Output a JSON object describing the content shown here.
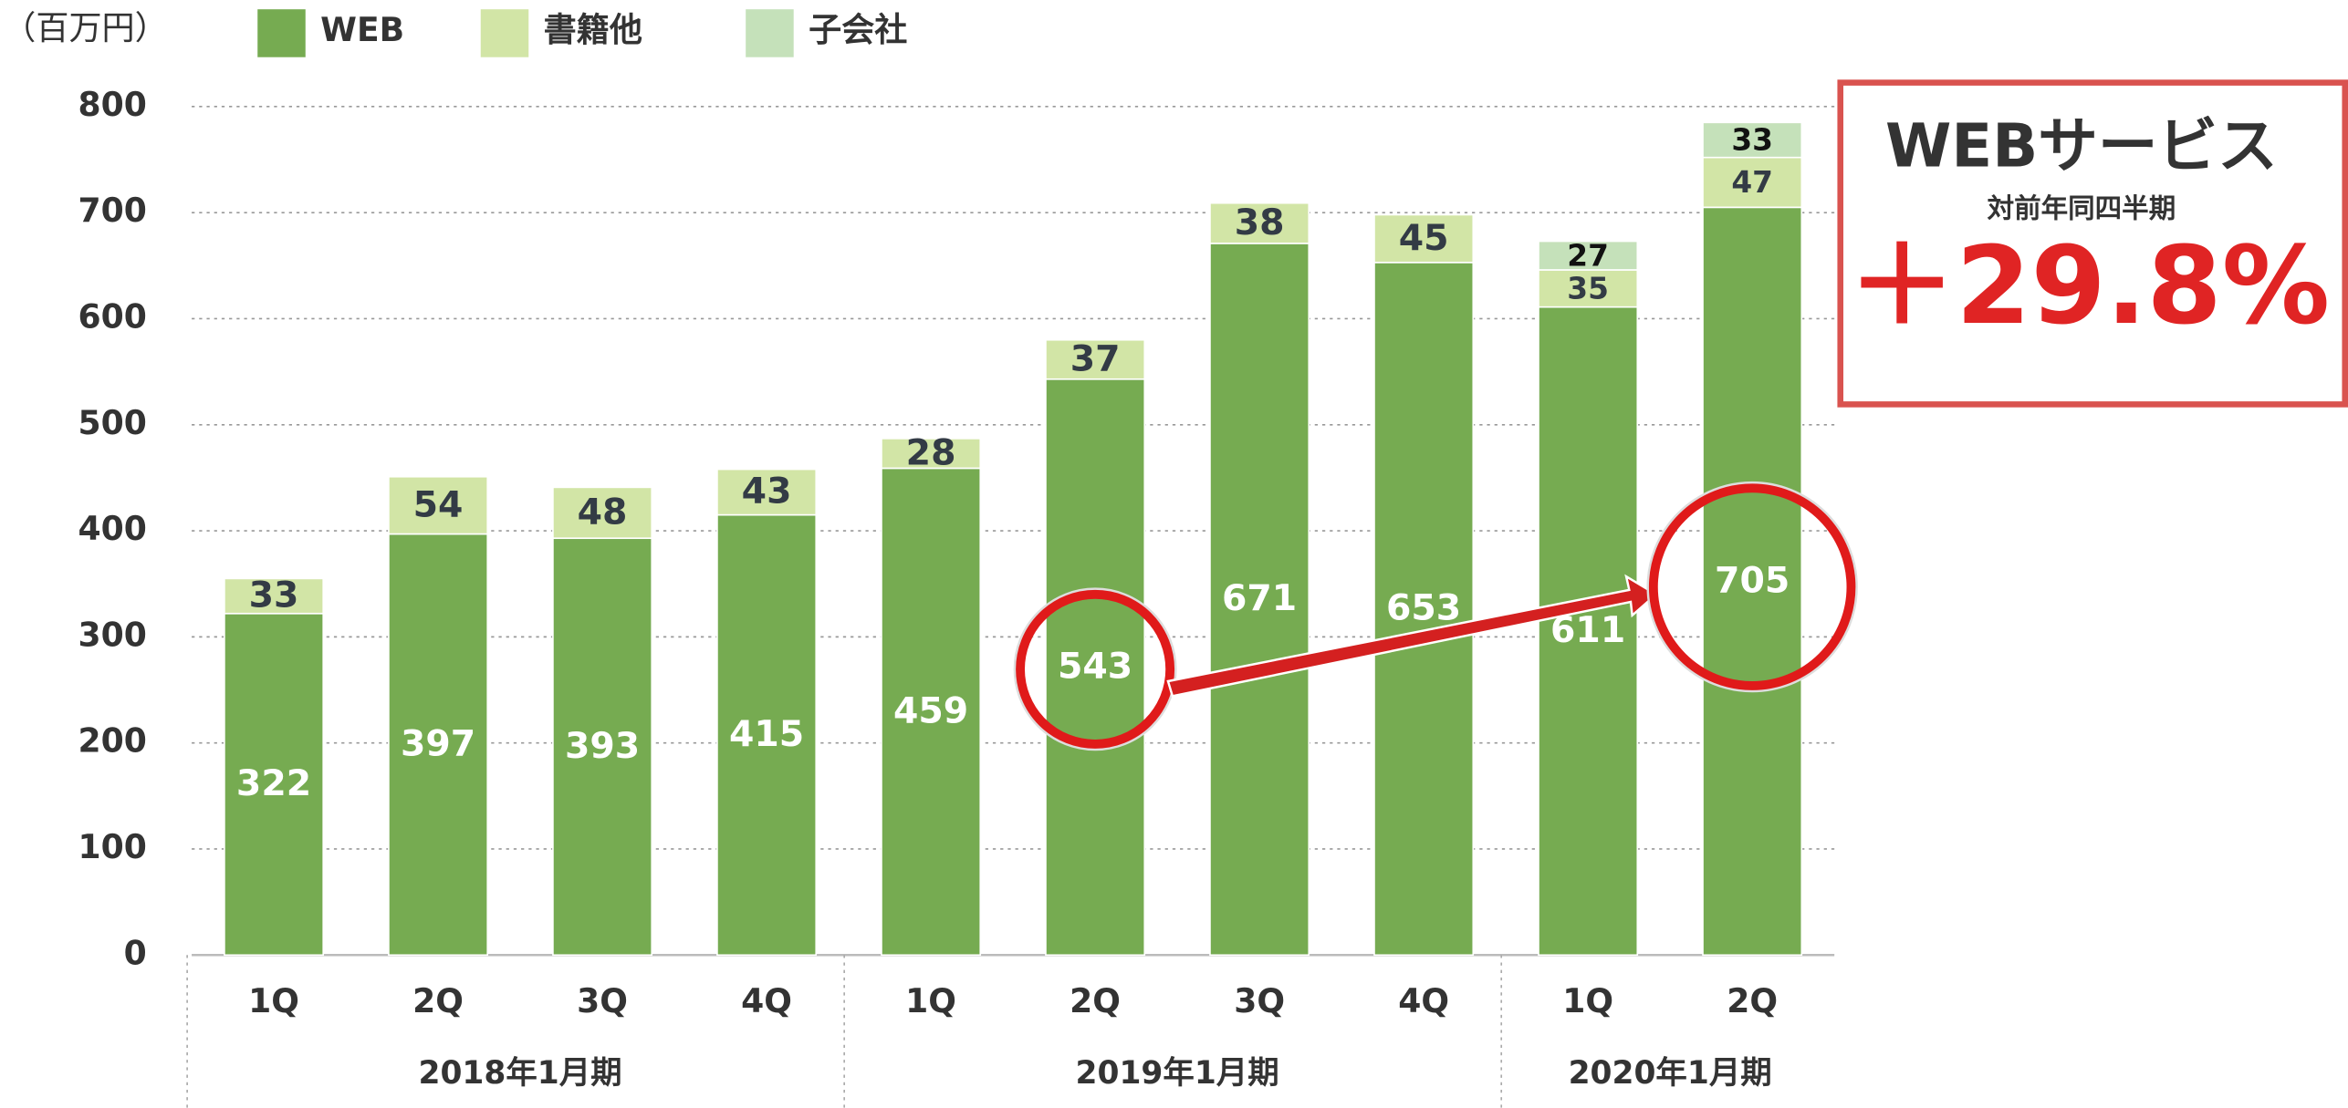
{
  "chart_data": {
    "type": "stacked_bar",
    "unit": "（百万円）",
    "categories": [
      "1Q",
      "2Q",
      "3Q",
      "4Q",
      "1Q",
      "2Q",
      "3Q",
      "4Q",
      "1Q",
      "2Q"
    ],
    "groups": [
      {
        "label": "2018年1月期",
        "count": 4
      },
      {
        "label": "2019年1月期",
        "count": 4
      },
      {
        "label": "2020年1月期",
        "count": 2
      }
    ],
    "series": [
      {
        "name": "WEB",
        "color": "#76ab51",
        "label_color": "#ffffff",
        "values": [
          322,
          397,
          393,
          415,
          459,
          543,
          671,
          653,
          611,
          705
        ]
      },
      {
        "name": "書籍他",
        "color": "#d2e5a6",
        "label_color": "#333b45",
        "values": [
          33,
          54,
          48,
          43,
          28,
          37,
          38,
          45,
          35,
          47
        ]
      },
      {
        "name": "子会社",
        "color": "#c5e1ba",
        "label_color": "#111111",
        "values": [
          null,
          null,
          null,
          null,
          null,
          null,
          null,
          null,
          27,
          33
        ]
      }
    ],
    "ylim": [
      0,
      800
    ],
    "yticks": [
      0,
      100,
      200,
      300,
      400,
      500,
      600,
      700,
      800
    ],
    "grid": true,
    "annotation": {
      "title": "WEBサービス",
      "subtitle": "対前年同四半期",
      "value_label": "＋29.8%"
    }
  }
}
